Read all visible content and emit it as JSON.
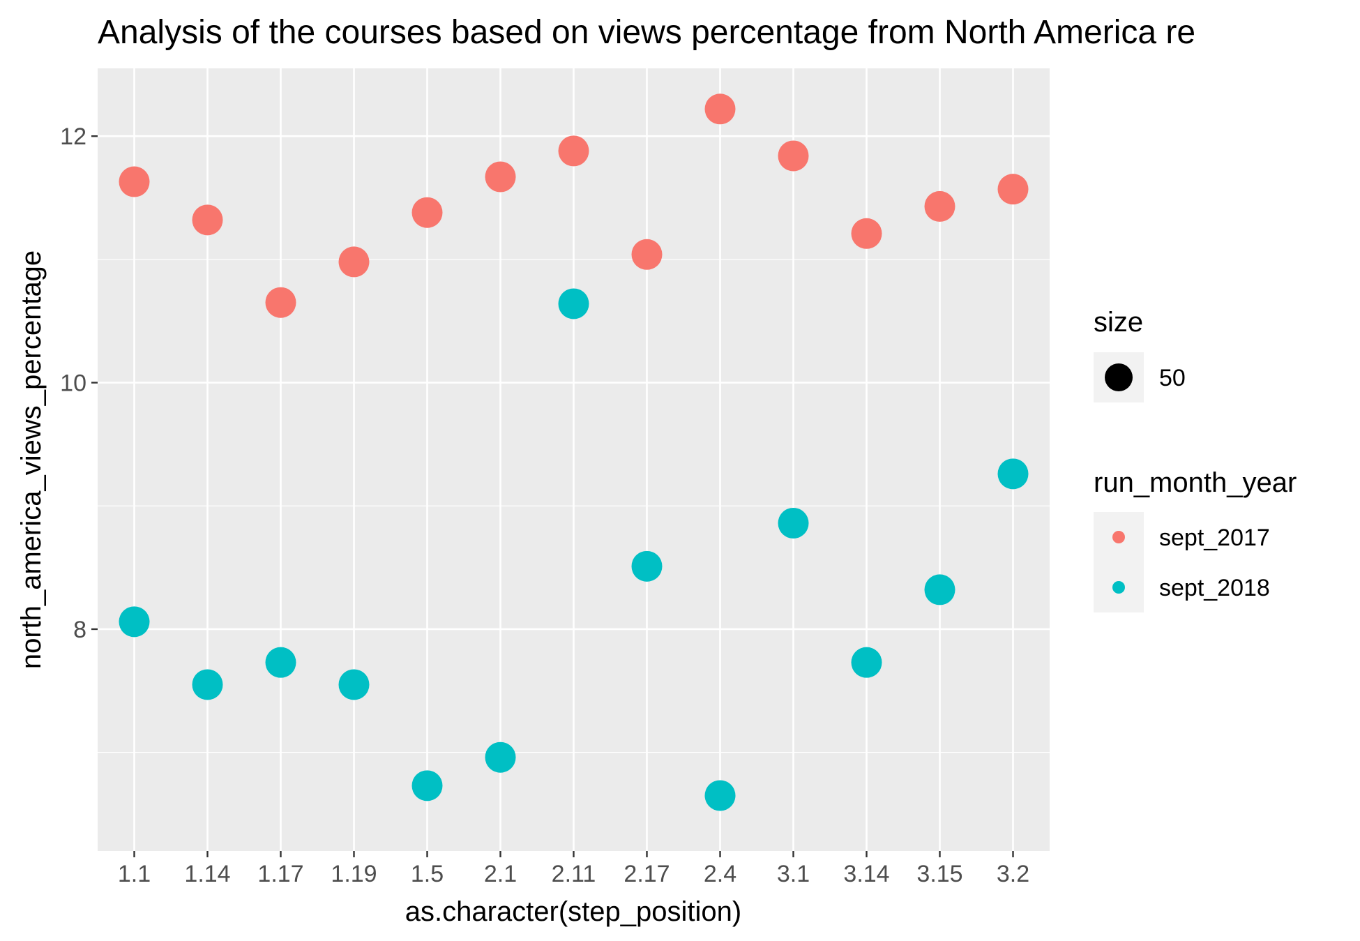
{
  "chart_data": {
    "type": "scatter",
    "title": "Analysis of the courses based on views percentage from North America re",
    "xlabel": "as.character(step_position)",
    "ylabel": "north_america_views_percentage",
    "categories": [
      "1.1",
      "1.14",
      "1.17",
      "1.19",
      "1.5",
      "2.1",
      "2.11",
      "2.17",
      "2.4",
      "3.1",
      "3.14",
      "3.15",
      "3.2"
    ],
    "yticks": [
      "8",
      "10",
      "12"
    ],
    "ylim": [
      6.2,
      12.55
    ],
    "grid": true,
    "series": [
      {
        "name": "sept_2017",
        "color": "#F8766D",
        "values": [
          11.63,
          11.32,
          10.65,
          10.98,
          11.38,
          11.67,
          11.88,
          11.04,
          12.22,
          11.84,
          11.21,
          11.43,
          11.57
        ]
      },
      {
        "name": "sept_2018",
        "color": "#00BFC4",
        "values": [
          8.06,
          7.55,
          7.73,
          7.55,
          6.73,
          6.96,
          10.64,
          8.51,
          6.65,
          8.86,
          7.73,
          8.32,
          9.26
        ]
      }
    ],
    "legend": {
      "placement": "right",
      "size_title": "size",
      "size_label": "50",
      "color_title": "run_month_year"
    }
  }
}
